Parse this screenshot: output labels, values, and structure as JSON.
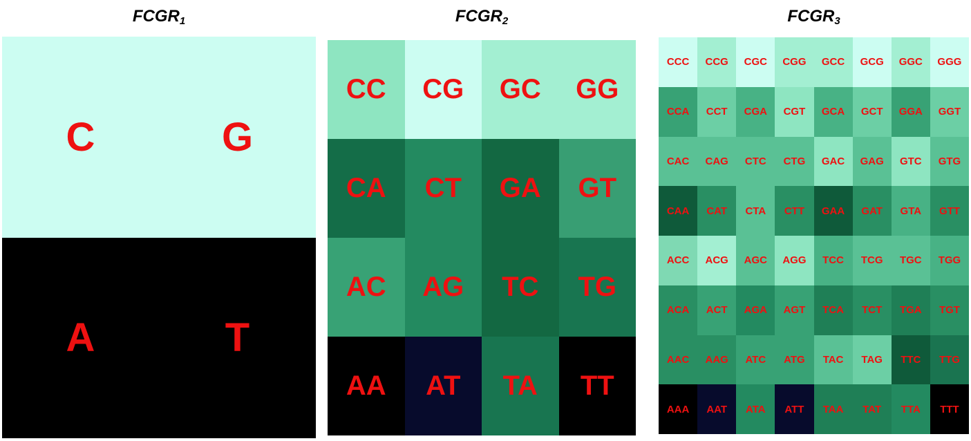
{
  "panels": [
    {
      "title_main": "FCGR",
      "title_sub": "1",
      "cells": [
        {
          "label": "C",
          "color": "#ccfdf2"
        },
        {
          "label": "G",
          "color": "#ccfdf2"
        },
        {
          "label": "A",
          "color": "#000000"
        },
        {
          "label": "T",
          "color": "#000000"
        }
      ]
    },
    {
      "title_main": "FCGR",
      "title_sub": "2",
      "cells": [
        {
          "label": "CC",
          "color": "#8ee5c1"
        },
        {
          "label": "CG",
          "color": "#ccfdf2"
        },
        {
          "label": "GC",
          "color": "#a3efd2"
        },
        {
          "label": "GG",
          "color": "#a3efd2"
        },
        {
          "label": "CA",
          "color": "#146d48"
        },
        {
          "label": "CT",
          "color": "#238a60"
        },
        {
          "label": "GA",
          "color": "#136842"
        },
        {
          "label": "GT",
          "color": "#389e73"
        },
        {
          "label": "AC",
          "color": "#38a275"
        },
        {
          "label": "AG",
          "color": "#238a60"
        },
        {
          "label": "TC",
          "color": "#136842"
        },
        {
          "label": "TG",
          "color": "#187550"
        },
        {
          "label": "AA",
          "color": "#000000"
        },
        {
          "label": "AT",
          "color": "#070b2c"
        },
        {
          "label": "TA",
          "color": "#187550"
        },
        {
          "label": "TT",
          "color": "#000000"
        }
      ]
    },
    {
      "title_main": "FCGR",
      "title_sub": "3",
      "cells": [
        {
          "label": "CCC",
          "color": "#ccfdf2"
        },
        {
          "label": "CCG",
          "color": "#a3efd2"
        },
        {
          "label": "CGC",
          "color": "#ccfdf2"
        },
        {
          "label": "CGG",
          "color": "#a3efd2"
        },
        {
          "label": "GCC",
          "color": "#a3efd2"
        },
        {
          "label": "GCG",
          "color": "#ccfdf2"
        },
        {
          "label": "GGC",
          "color": "#a3efd2"
        },
        {
          "label": "GGG",
          "color": "#ccfdf2"
        },
        {
          "label": "CCA",
          "color": "#38a275"
        },
        {
          "label": "CCT",
          "color": "#6ccfa5"
        },
        {
          "label": "CGA",
          "color": "#48b285"
        },
        {
          "label": "CGT",
          "color": "#8ee5c1"
        },
        {
          "label": "GCA",
          "color": "#48b285"
        },
        {
          "label": "GCT",
          "color": "#6ccfa5"
        },
        {
          "label": "GGA",
          "color": "#38a275"
        },
        {
          "label": "GGT",
          "color": "#6ccfa5"
        },
        {
          "label": "CAC",
          "color": "#5ac195"
        },
        {
          "label": "CAG",
          "color": "#5ac195"
        },
        {
          "label": "CTC",
          "color": "#5ac195"
        },
        {
          "label": "CTG",
          "color": "#5ac195"
        },
        {
          "label": "GAC",
          "color": "#8ee5c1"
        },
        {
          "label": "GAG",
          "color": "#5ac195"
        },
        {
          "label": "GTC",
          "color": "#8ee5c1"
        },
        {
          "label": "GTG",
          "color": "#5ac195"
        },
        {
          "label": "CAA",
          "color": "#0f5a3a"
        },
        {
          "label": "CAT",
          "color": "#298f63"
        },
        {
          "label": "CTA",
          "color": "#5ac195"
        },
        {
          "label": "CTT",
          "color": "#298f63"
        },
        {
          "label": "GAA",
          "color": "#0f5a3a"
        },
        {
          "label": "GAT",
          "color": "#298f63"
        },
        {
          "label": "GTA",
          "color": "#48b285"
        },
        {
          "label": "GTT",
          "color": "#298f63"
        },
        {
          "label": "ACC",
          "color": "#7fd9b3"
        },
        {
          "label": "ACG",
          "color": "#a3efd2"
        },
        {
          "label": "AGC",
          "color": "#5ac195"
        },
        {
          "label": "AGG",
          "color": "#8ee5c1"
        },
        {
          "label": "TCC",
          "color": "#48b285"
        },
        {
          "label": "TCG",
          "color": "#5ac195"
        },
        {
          "label": "TGC",
          "color": "#5ac195"
        },
        {
          "label": "TGG",
          "color": "#48b285"
        },
        {
          "label": "ACA",
          "color": "#298f63"
        },
        {
          "label": "ACT",
          "color": "#38a275"
        },
        {
          "label": "AGA",
          "color": "#238a60"
        },
        {
          "label": "AGT",
          "color": "#38a275"
        },
        {
          "label": "TCA",
          "color": "#1f7f56"
        },
        {
          "label": "TCT",
          "color": "#298f63"
        },
        {
          "label": "TGA",
          "color": "#1f7f56"
        },
        {
          "label": "TGT",
          "color": "#298f63"
        },
        {
          "label": "AAC",
          "color": "#298f63"
        },
        {
          "label": "AAG",
          "color": "#298f63"
        },
        {
          "label": "ATC",
          "color": "#38a275"
        },
        {
          "label": "ATG",
          "color": "#38a275"
        },
        {
          "label": "TAC",
          "color": "#5ac195"
        },
        {
          "label": "TAG",
          "color": "#6ccfa5"
        },
        {
          "label": "TTC",
          "color": "#0f5a3a"
        },
        {
          "label": "TTG",
          "color": "#1a7450"
        },
        {
          "label": "AAA",
          "color": "#000000"
        },
        {
          "label": "AAT",
          "color": "#070b2c"
        },
        {
          "label": "ATA",
          "color": "#238a60"
        },
        {
          "label": "ATT",
          "color": "#070b2c"
        },
        {
          "label": "TAA",
          "color": "#1f7f56"
        },
        {
          "label": "TAT",
          "color": "#1f7f56"
        },
        {
          "label": "TTA",
          "color": "#238a60"
        },
        {
          "label": "TTT",
          "color": "#000000"
        }
      ]
    }
  ]
}
